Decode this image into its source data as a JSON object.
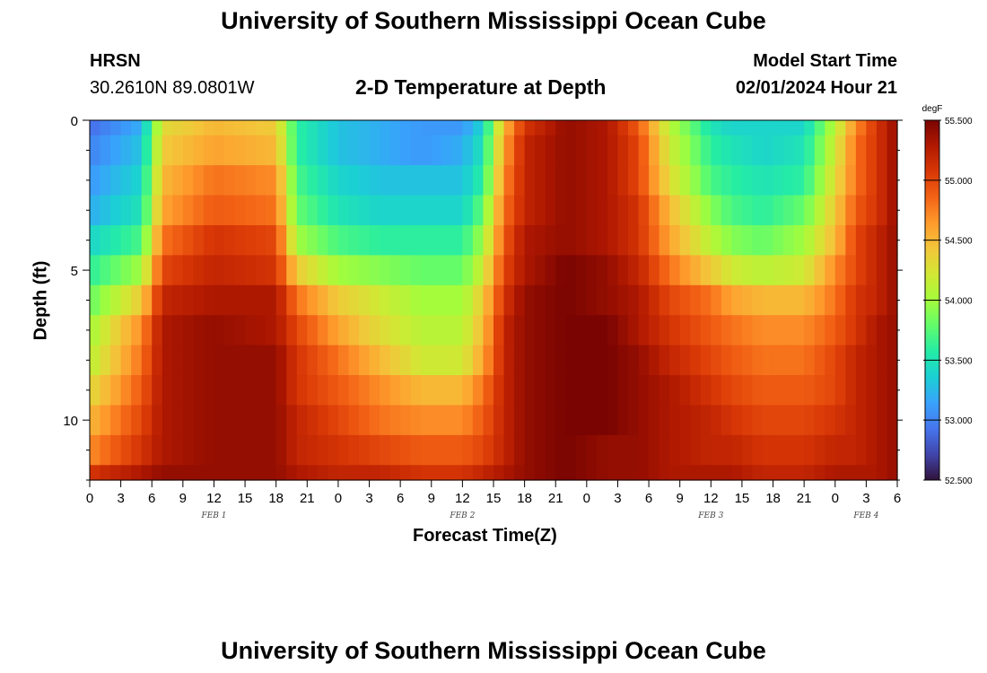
{
  "header": {
    "title": "University of Southern Mississippi Ocean Cube",
    "station": "HRSN",
    "coords": "30.2610N  89.0801W",
    "subtitle": "2-D Temperature at Depth",
    "model_start_label": "Model Start Time",
    "model_start_value": "02/01/2024 Hour 21"
  },
  "footer": {
    "title": "University of Southern Mississippi Ocean Cube"
  },
  "colors": {
    "ramp": [
      "#30123b",
      "#4145ab",
      "#4675ed",
      "#39a2fc",
      "#1bcfd4",
      "#24eca6",
      "#61fc6c",
      "#a4fc3b",
      "#d1e834",
      "#f3c63a",
      "#fe9b2d",
      "#f36315",
      "#d93806",
      "#b11901",
      "#7a0402"
    ]
  },
  "chart_data": {
    "type": "heatmap",
    "title": "2-D Temperature at Depth",
    "xlabel": "Forecast Time(Z)",
    "ylabel": "Depth (ft)",
    "x_tick_labels": [
      "0",
      "3",
      "6",
      "9",
      "12",
      "15",
      "18",
      "21",
      "0",
      "3",
      "6",
      "9",
      "12",
      "15",
      "18",
      "21",
      "0",
      "3",
      "6",
      "9",
      "12",
      "15",
      "18",
      "21",
      "0",
      "3",
      "6"
    ],
    "x_range_hours": [
      0,
      78
    ],
    "day_labels": [
      {
        "label": "FEB 1",
        "hour": 12
      },
      {
        "label": "FEB 2",
        "hour": 36
      },
      {
        "label": "FEB 3",
        "hour": 60
      },
      {
        "label": "FEB 4",
        "hour": 75
      }
    ],
    "y_tick_labels": [
      "0",
      "5",
      "10"
    ],
    "y_range_ft": [
      0,
      12
    ],
    "colorbar": {
      "units": "degF",
      "ticks": [
        "55.500",
        "55.000",
        "54.500",
        "54.000",
        "53.500",
        "53.000",
        "52.500"
      ],
      "range": [
        52.5,
        55.5
      ]
    },
    "depth_layers_ft": [
      0,
      1,
      2,
      3,
      4,
      5,
      6,
      7,
      8,
      9,
      10,
      11,
      12
    ],
    "time_knots_hours": [
      0,
      5,
      7,
      12,
      18,
      20,
      24,
      28,
      32,
      36,
      38,
      40,
      42,
      46,
      50,
      53,
      56,
      60,
      62,
      65,
      69,
      72,
      74,
      76,
      78
    ],
    "temperature_degF": [
      [
        52.9,
        53.2,
        54.3,
        54.5,
        54.4,
        53.6,
        53.3,
        53.2,
        53.1,
        53.1,
        53.4,
        54.5,
        55.1,
        55.4,
        55.3,
        54.9,
        54.1,
        53.5,
        53.4,
        53.4,
        53.4,
        54.1,
        54.7,
        55.1,
        55.4
      ],
      [
        53.0,
        53.3,
        54.4,
        54.6,
        54.5,
        53.6,
        53.3,
        53.2,
        53.1,
        53.2,
        53.5,
        54.6,
        55.2,
        55.4,
        55.3,
        55.0,
        54.2,
        53.6,
        53.5,
        53.4,
        53.5,
        54.2,
        54.8,
        55.1,
        55.4
      ],
      [
        53.1,
        53.4,
        54.5,
        54.8,
        54.7,
        53.7,
        53.4,
        53.3,
        53.3,
        53.3,
        53.6,
        54.7,
        55.2,
        55.4,
        55.3,
        55.0,
        54.3,
        53.7,
        53.6,
        53.5,
        53.6,
        54.3,
        54.8,
        55.1,
        55.4
      ],
      [
        53.2,
        53.5,
        54.6,
        54.9,
        54.8,
        53.8,
        53.5,
        53.4,
        53.4,
        53.4,
        53.8,
        54.8,
        55.2,
        55.4,
        55.3,
        55.1,
        54.5,
        53.9,
        53.7,
        53.6,
        53.8,
        54.4,
        54.9,
        55.1,
        55.4
      ],
      [
        53.4,
        53.7,
        54.8,
        55.1,
        55.0,
        54.0,
        53.7,
        53.6,
        53.6,
        53.6,
        54.0,
        54.9,
        55.3,
        55.4,
        55.3,
        55.1,
        54.6,
        54.1,
        53.9,
        53.8,
        54.0,
        54.5,
        55.0,
        55.2,
        55.4
      ],
      [
        53.6,
        54.0,
        55.0,
        55.2,
        55.1,
        54.4,
        54.0,
        53.9,
        53.8,
        53.8,
        54.2,
        55.0,
        55.3,
        55.5,
        55.4,
        55.2,
        54.8,
        54.4,
        54.2,
        54.1,
        54.2,
        54.7,
        55.0,
        55.2,
        55.4
      ],
      [
        53.8,
        54.4,
        55.2,
        55.3,
        55.3,
        54.8,
        54.4,
        54.2,
        54.0,
        54.0,
        54.4,
        55.1,
        55.4,
        55.5,
        55.4,
        55.3,
        55.0,
        54.8,
        54.6,
        54.5,
        54.5,
        54.8,
        55.1,
        55.2,
        55.4
      ],
      [
        54.0,
        54.7,
        55.3,
        55.4,
        55.3,
        55.0,
        54.6,
        54.3,
        54.1,
        54.1,
        54.5,
        55.2,
        55.4,
        55.5,
        55.5,
        55.3,
        55.1,
        54.9,
        54.8,
        54.7,
        54.7,
        54.9,
        55.1,
        55.3,
        55.4
      ],
      [
        54.1,
        54.8,
        55.3,
        55.4,
        55.4,
        55.1,
        54.8,
        54.5,
        54.2,
        54.2,
        54.6,
        55.2,
        55.4,
        55.5,
        55.5,
        55.4,
        55.2,
        55.0,
        54.9,
        54.8,
        54.8,
        55.0,
        55.2,
        55.3,
        55.4
      ],
      [
        54.3,
        54.9,
        55.3,
        55.4,
        55.4,
        55.1,
        54.9,
        54.7,
        54.5,
        54.5,
        54.8,
        55.2,
        55.4,
        55.5,
        55.5,
        55.4,
        55.3,
        55.1,
        55.0,
        54.9,
        54.9,
        55.0,
        55.2,
        55.3,
        55.4
      ],
      [
        54.5,
        55.0,
        55.3,
        55.4,
        55.4,
        55.2,
        55.0,
        54.8,
        54.7,
        54.7,
        54.9,
        55.2,
        55.4,
        55.5,
        55.5,
        55.4,
        55.3,
        55.2,
        55.1,
        55.0,
        55.0,
        55.1,
        55.2,
        55.3,
        55.4
      ],
      [
        54.7,
        55.1,
        55.3,
        55.4,
        55.4,
        55.2,
        55.1,
        55.0,
        54.9,
        54.9,
        55.0,
        55.2,
        55.4,
        55.5,
        55.4,
        55.4,
        55.3,
        55.2,
        55.2,
        55.1,
        55.1,
        55.2,
        55.2,
        55.3,
        55.4
      ],
      [
        55.1,
        55.3,
        55.4,
        55.4,
        55.4,
        55.3,
        55.2,
        55.2,
        55.1,
        55.1,
        55.2,
        55.3,
        55.4,
        55.5,
        55.4,
        55.4,
        55.3,
        55.3,
        55.3,
        55.2,
        55.2,
        55.3,
        55.3,
        55.3,
        55.4
      ]
    ]
  }
}
